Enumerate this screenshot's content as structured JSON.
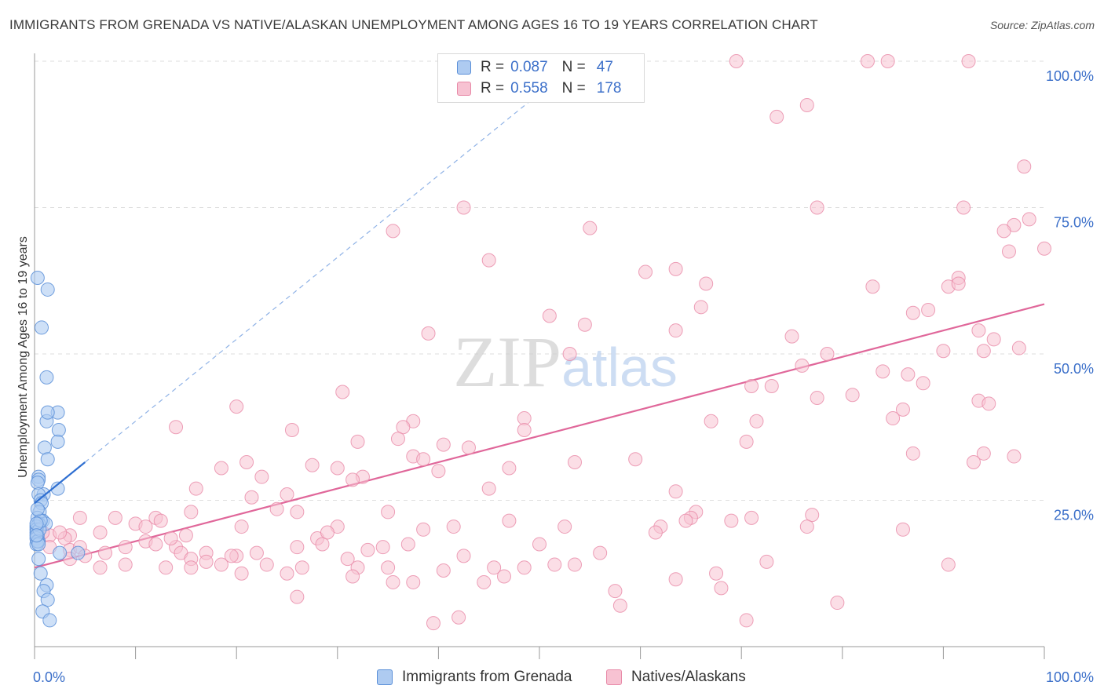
{
  "title": "IMMIGRANTS FROM GRENADA VS NATIVE/ALASKAN UNEMPLOYMENT AMONG AGES 16 TO 19 YEARS CORRELATION CHART",
  "source": "Source: ZipAtlas.com",
  "watermark": "ZIPatlas",
  "colors": {
    "blue_fill": "#aecbf1",
    "blue_stroke": "#5a8fd8",
    "blue_line": "#2f6fd1",
    "pink_fill": "#f7c2d2",
    "pink_stroke": "#e88aa8",
    "pink_line": "#e0679a",
    "tick_label": "#3b6fc9",
    "grid": "#dddddd"
  },
  "legend_top": {
    "rows": [
      {
        "r_label": "R =",
        "r_value": "0.087",
        "n_label": "N =",
        "n_value": "47",
        "color": "blue"
      },
      {
        "r_label": "R =",
        "r_value": "0.558",
        "n_label": "N =",
        "n_value": "178",
        "color": "pink"
      }
    ]
  },
  "legend_bottom": [
    {
      "label": "Immigrants from Grenada",
      "color": "blue"
    },
    {
      "label": "Natives/Alaskans",
      "color": "pink"
    }
  ],
  "chart_data": {
    "type": "scatter",
    "xlabel": "",
    "ylabel": "Unemployment Among Ages 16 to 19 years",
    "xlim": [
      0,
      100
    ],
    "ylim": [
      0,
      100
    ],
    "x_tick_labels": [
      "0.0%",
      "100.0%"
    ],
    "y_tick_labels": [
      {
        "value": 25,
        "label": "25.0%"
      },
      {
        "value": 50,
        "label": "50.0%"
      },
      {
        "value": 75,
        "label": "75.0%"
      },
      {
        "value": 100,
        "label": "100.0%"
      }
    ],
    "grid": true,
    "series": [
      {
        "name": "Immigrants from Grenada",
        "color": "blue",
        "trend": {
          "x0": 0,
          "y0": 24.5,
          "x1": 5,
          "y1": 31.5,
          "dashed_to_x": 50
        },
        "points": [
          [
            0.3,
            63
          ],
          [
            1.3,
            61
          ],
          [
            0.7,
            54.5
          ],
          [
            1.2,
            46
          ],
          [
            1.2,
            38.5
          ],
          [
            2.3,
            40
          ],
          [
            1.3,
            40
          ],
          [
            2.4,
            37
          ],
          [
            2.3,
            35
          ],
          [
            1.0,
            34
          ],
          [
            1.3,
            32
          ],
          [
            0.4,
            29
          ],
          [
            0.4,
            28.5
          ],
          [
            0.3,
            28
          ],
          [
            2.3,
            27
          ],
          [
            0.9,
            26
          ],
          [
            0.4,
            26
          ],
          [
            0.6,
            25
          ],
          [
            0.7,
            24.5
          ],
          [
            0.5,
            23
          ],
          [
            0.3,
            22
          ],
          [
            0.8,
            21.5
          ],
          [
            1.1,
            21
          ],
          [
            0.4,
            21
          ],
          [
            0.2,
            20.5
          ],
          [
            0.2,
            20
          ],
          [
            0.2,
            19.5
          ],
          [
            0.3,
            19
          ],
          [
            0.2,
            18.5
          ],
          [
            0.4,
            18
          ],
          [
            0.2,
            17.5
          ],
          [
            4.3,
            16
          ],
          [
            2.5,
            16
          ],
          [
            0.4,
            15
          ],
          [
            0.6,
            12.5
          ],
          [
            1.2,
            10.5
          ],
          [
            0.9,
            9.5
          ],
          [
            1.3,
            8
          ],
          [
            0.8,
            6
          ],
          [
            1.5,
            4.5
          ],
          [
            0.3,
            18
          ],
          [
            0.5,
            20
          ],
          [
            0.6,
            21.5
          ],
          [
            0.3,
            23.5
          ],
          [
            0.2,
            21
          ],
          [
            0.4,
            17.5
          ],
          [
            0.2,
            19
          ]
        ]
      },
      {
        "name": "Natives/Alaskans",
        "color": "pink",
        "trend": {
          "x0": 0,
          "y0": 13.5,
          "x1": 100,
          "y1": 58.5
        },
        "points": [
          [
            69.5,
            100
          ],
          [
            84.5,
            100
          ],
          [
            82.5,
            100
          ],
          [
            92.5,
            100
          ],
          [
            54.5,
            100
          ],
          [
            57.5,
            100
          ],
          [
            73.5,
            90.5
          ],
          [
            76.5,
            92.5
          ],
          [
            98,
            82
          ],
          [
            42.5,
            75
          ],
          [
            77.5,
            75
          ],
          [
            92,
            75
          ],
          [
            98.5,
            73
          ],
          [
            97,
            72
          ],
          [
            96,
            71
          ],
          [
            35.5,
            71
          ],
          [
            55,
            71.5
          ],
          [
            100,
            68
          ],
          [
            96.5,
            67.5
          ],
          [
            45,
            66
          ],
          [
            60.5,
            64
          ],
          [
            63.5,
            64.5
          ],
          [
            66.5,
            62
          ],
          [
            83,
            61.5
          ],
          [
            90.5,
            61.5
          ],
          [
            91.5,
            63
          ],
          [
            91.5,
            62
          ],
          [
            88.5,
            57.5
          ],
          [
            66,
            58
          ],
          [
            87,
            57
          ],
          [
            51,
            56.5
          ],
          [
            54.5,
            55
          ],
          [
            93.5,
            54
          ],
          [
            63.5,
            54
          ],
          [
            75,
            53
          ],
          [
            95,
            52.5
          ],
          [
            39,
            53.5
          ],
          [
            53,
            50
          ],
          [
            78.5,
            50
          ],
          [
            71,
            44.5
          ],
          [
            73,
            44.5
          ],
          [
            90,
            50.5
          ],
          [
            94,
            50.5
          ],
          [
            97.5,
            51
          ],
          [
            84,
            47
          ],
          [
            86.5,
            46.5
          ],
          [
            76,
            48
          ],
          [
            81,
            43
          ],
          [
            88,
            45
          ],
          [
            30.5,
            43.5
          ],
          [
            93.5,
            42
          ],
          [
            94.5,
            41.5
          ],
          [
            77.5,
            42.5
          ],
          [
            86,
            40.5
          ],
          [
            85,
            39
          ],
          [
            71.5,
            38.5
          ],
          [
            67,
            38.5
          ],
          [
            37.5,
            38.5
          ],
          [
            36.5,
            37.5
          ],
          [
            48.5,
            39
          ],
          [
            48.5,
            37
          ],
          [
            20,
            41
          ],
          [
            14,
            37.5
          ],
          [
            25.5,
            37
          ],
          [
            32,
            35
          ],
          [
            36,
            35.5
          ],
          [
            40.5,
            34.5
          ],
          [
            43,
            34
          ],
          [
            70.5,
            35
          ],
          [
            87,
            33
          ],
          [
            94,
            33
          ],
          [
            97,
            32.5
          ],
          [
            93,
            31.5
          ],
          [
            59.5,
            32
          ],
          [
            53.5,
            31.5
          ],
          [
            47,
            30.5
          ],
          [
            30,
            30.5
          ],
          [
            21,
            31.5
          ],
          [
            27.5,
            31
          ],
          [
            32.5,
            29
          ],
          [
            37.5,
            32.5
          ],
          [
            38.5,
            32
          ],
          [
            40,
            30
          ],
          [
            18.5,
            30.5
          ],
          [
            22.5,
            29
          ],
          [
            25,
            26
          ],
          [
            21.5,
            25.5
          ],
          [
            31.5,
            28.5
          ],
          [
            35,
            23
          ],
          [
            45,
            27
          ],
          [
            63.5,
            26.5
          ],
          [
            16,
            27
          ],
          [
            15.5,
            23
          ],
          [
            24,
            23.5
          ],
          [
            20.5,
            20.5
          ],
          [
            26,
            23
          ],
          [
            38.5,
            20
          ],
          [
            77,
            22.5
          ],
          [
            71,
            22
          ],
          [
            65.5,
            23
          ],
          [
            65,
            22
          ],
          [
            64.5,
            21.5
          ],
          [
            69,
            21.5
          ],
          [
            86,
            20
          ],
          [
            76.5,
            20.5
          ],
          [
            62,
            20.5
          ],
          [
            61.5,
            19.5
          ],
          [
            47,
            21.5
          ],
          [
            41.5,
            20.5
          ],
          [
            52.5,
            20.5
          ],
          [
            30,
            20.5
          ],
          [
            28,
            18.5
          ],
          [
            29,
            19.5
          ],
          [
            12,
            22
          ],
          [
            12.5,
            21.5
          ],
          [
            10,
            21
          ],
          [
            8,
            22
          ],
          [
            11,
            20.5
          ],
          [
            4.5,
            22
          ],
          [
            6.5,
            19.5
          ],
          [
            3.5,
            19
          ],
          [
            3,
            18.5
          ],
          [
            1.5,
            19
          ],
          [
            2.5,
            19.5
          ],
          [
            0.8,
            19.5
          ],
          [
            3.5,
            16.5
          ],
          [
            4.5,
            17
          ],
          [
            3.5,
            15
          ],
          [
            1.5,
            17
          ],
          [
            9,
            17
          ],
          [
            11,
            18
          ],
          [
            12,
            17.5
          ],
          [
            14,
            17
          ],
          [
            13.5,
            18.5
          ],
          [
            15,
            19
          ],
          [
            14.5,
            16
          ],
          [
            17,
            16
          ],
          [
            15.5,
            15
          ],
          [
            20,
            15.5
          ],
          [
            22,
            16
          ],
          [
            26,
            17
          ],
          [
            28.5,
            17.5
          ],
          [
            33,
            16.5
          ],
          [
            34.5,
            17
          ],
          [
            31,
            15
          ],
          [
            26.5,
            13.5
          ],
          [
            25,
            12.5
          ],
          [
            32,
            13.5
          ],
          [
            35,
            13.5
          ],
          [
            37,
            17.5
          ],
          [
            40.5,
            13
          ],
          [
            37.5,
            11
          ],
          [
            42.5,
            15.5
          ],
          [
            45.5,
            13.5
          ],
          [
            44.5,
            11
          ],
          [
            46.5,
            12
          ],
          [
            50,
            17.5
          ],
          [
            51.5,
            14
          ],
          [
            53.5,
            14
          ],
          [
            56,
            16
          ],
          [
            57.5,
            9.5
          ],
          [
            58,
            7
          ],
          [
            63.5,
            11.5
          ],
          [
            67.5,
            12.5
          ],
          [
            68,
            10
          ],
          [
            70.5,
            4.5
          ],
          [
            72.5,
            14.5
          ],
          [
            79.5,
            7.5
          ],
          [
            90.5,
            14
          ],
          [
            7,
            16
          ],
          [
            5,
            15.5
          ],
          [
            6.5,
            13.5
          ],
          [
            9,
            14
          ],
          [
            13,
            13.5
          ],
          [
            15.5,
            13.5
          ],
          [
            17,
            14.5
          ],
          [
            18.5,
            14
          ],
          [
            19.5,
            15.5
          ],
          [
            20.5,
            12.5
          ],
          [
            23,
            14
          ],
          [
            26,
            8.5
          ],
          [
            31.5,
            12
          ],
          [
            35.5,
            11
          ],
          [
            39.5,
            4
          ],
          [
            42,
            5
          ],
          [
            48.5,
            13.5
          ]
        ]
      }
    ]
  }
}
